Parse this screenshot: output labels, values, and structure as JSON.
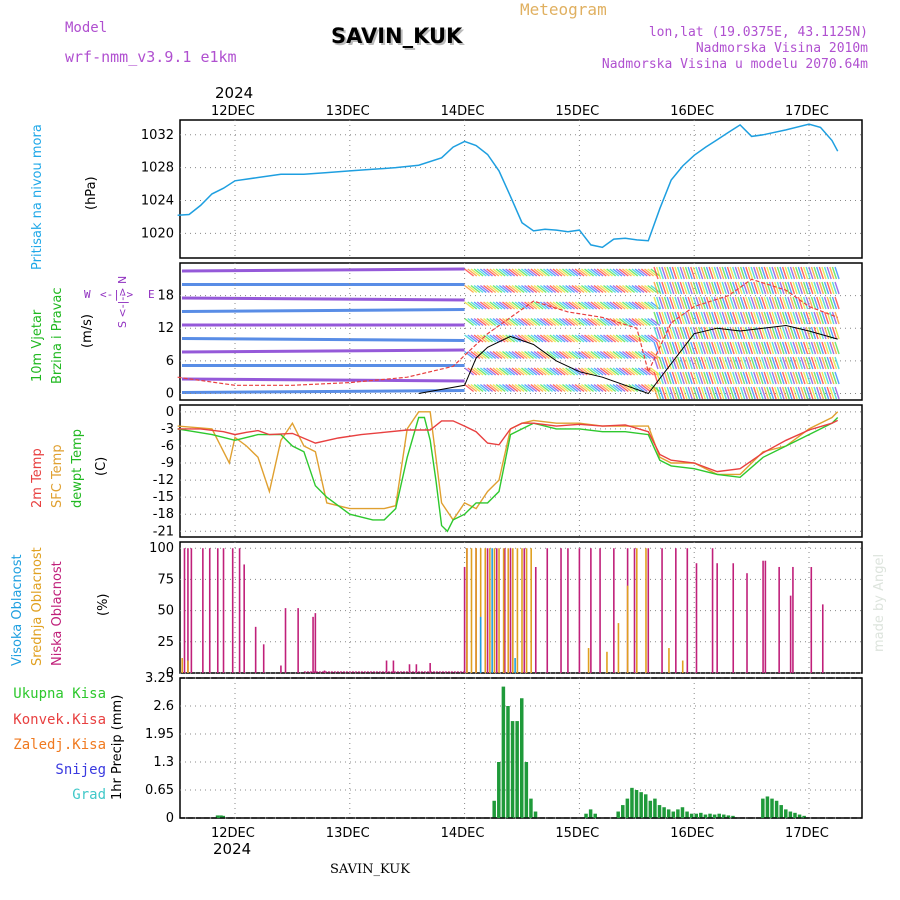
{
  "header": {
    "model_label": "Model",
    "model_name": "wrf-nmm_v3.9.1  e1km",
    "station": "SAVIN_KUK",
    "product": "Meteogram",
    "coords": "lon,lat (19.0375E, 43.1125N)",
    "elevation": "Nadmorska Visina 2010m",
    "model_elevation": "Nadmorska Visina u modelu 2070.64m",
    "year_top": "2024",
    "year_bottom": "2024",
    "footer_station": "SAVIN_KUK",
    "watermark": "made by Angel"
  },
  "colors": {
    "pressure": "#1e9fe0",
    "temp2m": "#e84040",
    "sfc": "#e0a030",
    "dewpt": "#2ec82e",
    "low_cloud": "#c0207a",
    "mid_cloud": "#e0a020",
    "high_cloud": "#20a0e0",
    "total_precip": "#1f9a3a",
    "conv_precip": "#e84040",
    "frz_precip": "#f07a20",
    "snow": "#3a3ae0",
    "graupel": "#40c8c8",
    "wind_label": "#9030c0"
  },
  "panels": {
    "pressure": {
      "label": "Pritisak na nivou mora",
      "unit": "(hPa)"
    },
    "wind": {
      "label1": "10m Vjetar",
      "label2": "Brzina i Pravac",
      "unit": "(m/s)",
      "compass_n": "N",
      "compass_s": "S",
      "compass_w": "W",
      "compass_e": "E"
    },
    "temp": {
      "label1": "2m Temp",
      "label2": "SFC Temp",
      "label3": "dewpt Temp",
      "unit": "(C)"
    },
    "cloud": {
      "label1": "Visoka Oblacnost",
      "label2": "Srednja Oblacnost",
      "label3": "Niska Oblacnost",
      "unit": "(%)"
    },
    "precip": {
      "unit": "1hr Precip (mm)",
      "legend": [
        "Ukupna Kisa",
        "Konvek.Kisa",
        "Zaledj.Kisa",
        "Snijeg",
        "Grad"
      ]
    }
  },
  "chart_data": [
    {
      "type": "line",
      "title": "",
      "ylabel": "(hPa)",
      "x_tick_labels": [
        "12DEC",
        "13DEC",
        "14DEC",
        "15DEC",
        "16DEC",
        "17DEC"
      ],
      "x_days": [
        0,
        1,
        2,
        3,
        4,
        5
      ],
      "x_range_days": [
        -0.5,
        5.25
      ],
      "y_range": [
        1017,
        1033.8
      ],
      "y_ticks": [
        1020,
        1024,
        1028,
        1032
      ],
      "grid": true,
      "series": [
        {
          "name": "Pritisak na nivou mora",
          "x": [
            -0.5,
            -0.4,
            -0.3,
            -0.2,
            -0.1,
            0,
            0.2,
            0.4,
            0.6,
            0.8,
            1,
            1.2,
            1.4,
            1.6,
            1.8,
            1.9,
            2,
            2.1,
            2.2,
            2.3,
            2.4,
            2.5,
            2.6,
            2.7,
            2.8,
            2.9,
            3,
            3.1,
            3.2,
            3.3,
            3.4,
            3.5,
            3.6,
            3.7,
            3.8,
            3.9,
            4,
            4.1,
            4.2,
            4.3,
            4.4,
            4.5,
            4.6,
            4.8,
            5,
            5.1,
            5.2,
            5.25
          ],
          "y": [
            1022.2,
            1022.3,
            1023.4,
            1024.8,
            1025.5,
            1026.4,
            1026.8,
            1027.2,
            1027.2,
            1027.4,
            1027.6,
            1027.8,
            1028,
            1028.3,
            1029.2,
            1030.5,
            1031.2,
            1030.7,
            1029.6,
            1027.6,
            1024.5,
            1021.3,
            1020.3,
            1020.5,
            1020.4,
            1020.2,
            1020.4,
            1018.6,
            1018.3,
            1019.3,
            1019.4,
            1019.2,
            1019.1,
            1023,
            1026.5,
            1028.2,
            1029.5,
            1030.5,
            1031.4,
            1032.3,
            1033.2,
            1031.8,
            1032,
            1032.6,
            1033.3,
            1032.9,
            1031.3,
            1030
          ]
        }
      ]
    },
    {
      "type": "scatter",
      "title": "",
      "ylabel": "(m/s)",
      "y_range": [
        -1.2,
        24
      ],
      "y_ticks": [
        0,
        6,
        12,
        18
      ],
      "grid": true,
      "note": "wind barbs with rainbow colors by speed",
      "series": [
        {
          "name": "Brzina (black line)",
          "x": [
            1.6,
            2.0,
            2.1,
            2.2,
            2.4,
            2.6,
            2.8,
            3.0,
            3.2,
            3.4,
            3.6,
            4.0,
            4.2,
            4.4,
            4.6,
            4.8,
            5.0,
            5.25
          ],
          "y": [
            0,
            1.5,
            6.5,
            8.5,
            10.5,
            9,
            6,
            4,
            3,
            1.5,
            0,
            11,
            12,
            11.5,
            12,
            12.5,
            11.5,
            10
          ]
        },
        {
          "name": "Udari (red dashed)",
          "x": [
            -0.5,
            0,
            0.5,
            1.0,
            1.5,
            1.9,
            2.2,
            2.6,
            2.9,
            3.2,
            3.5,
            3.6,
            3.8,
            4.0,
            4.3,
            4.5,
            4.8,
            5.0,
            5.25
          ],
          "y": [
            3,
            1.5,
            1.5,
            2,
            3,
            5,
            11,
            17,
            15,
            14,
            12,
            4,
            13,
            16,
            18,
            21,
            19,
            16,
            14
          ]
        }
      ]
    },
    {
      "type": "line",
      "title": "",
      "ylabel": "(C)",
      "y_range": [
        -22,
        1.2
      ],
      "y_ticks": [
        0,
        -3,
        -6,
        -9,
        -12,
        -15,
        -18,
        -21
      ],
      "grid": true,
      "series": [
        {
          "name": "2m Temp",
          "x": [
            -0.5,
            -0.3,
            -0.1,
            0.0,
            0.1,
            0.2,
            0.3,
            0.5,
            0.7,
            0.9,
            1.1,
            1.3,
            1.5,
            1.7,
            1.8,
            1.9,
            2.0,
            2.1,
            2.2,
            2.3,
            2.4,
            2.5,
            2.6,
            2.8,
            3.0,
            3.2,
            3.4,
            3.6,
            3.7,
            3.8,
            4.0,
            4.2,
            4.4,
            4.6,
            4.8,
            5.0,
            5.2,
            5.25
          ],
          "y": [
            -3,
            -3,
            -3.5,
            -4,
            -3.6,
            -3.3,
            -4,
            -3.8,
            -5.5,
            -4.6,
            -4,
            -3.6,
            -3.2,
            -3.2,
            -1.6,
            -1.6,
            -2.5,
            -3.5,
            -5.5,
            -5.8,
            -3,
            -2,
            -2,
            -2.5,
            -2.2,
            -2.5,
            -2.3,
            -3.5,
            -7.5,
            -8.5,
            -9,
            -10.5,
            -10,
            -7.2,
            -5,
            -3.2,
            -2,
            -1.5
          ]
        },
        {
          "name": "SFC Temp",
          "x": [
            -0.5,
            -0.2,
            -0.05,
            0.0,
            0.1,
            0.2,
            0.3,
            0.4,
            0.5,
            0.6,
            0.7,
            0.8,
            1.0,
            1.2,
            1.3,
            1.4,
            1.5,
            1.6,
            1.7,
            1.8,
            1.9,
            2.0,
            2.1,
            2.2,
            2.3,
            2.4,
            2.5,
            2.6,
            2.8,
            3.0,
            3.2,
            3.4,
            3.6,
            3.7,
            3.8,
            4.0,
            4.2,
            4.4,
            4.6,
            4.8,
            5.0,
            5.2,
            5.25
          ],
          "y": [
            -2.5,
            -3,
            -9,
            -4.5,
            -6,
            -8,
            -14,
            -5,
            -2,
            -6,
            -7,
            -16,
            -17,
            -17,
            -17,
            -16.5,
            -3,
            0,
            0,
            -16,
            -19,
            -16,
            -17,
            -14,
            -12,
            -3,
            -2,
            -1.5,
            -2,
            -2,
            -2.5,
            -2.5,
            -2.5,
            -8,
            -9,
            -9,
            -11,
            -11,
            -7,
            -6,
            -3,
            -1,
            0
          ]
        },
        {
          "name": "dewpt Temp",
          "x": [
            -0.5,
            -0.2,
            0.0,
            0.2,
            0.4,
            0.5,
            0.6,
            0.7,
            0.8,
            1.0,
            1.2,
            1.3,
            1.4,
            1.5,
            1.6,
            1.65,
            1.7,
            1.75,
            1.8,
            1.85,
            1.9,
            2.0,
            2.1,
            2.2,
            2.3,
            2.4,
            2.5,
            2.6,
            2.8,
            3.0,
            3.2,
            3.4,
            3.6,
            3.7,
            3.8,
            4.0,
            4.2,
            4.4,
            4.6,
            4.8,
            5.0,
            5.2,
            5.25
          ],
          "y": [
            -3,
            -4,
            -5,
            -4,
            -4,
            -6,
            -7,
            -13,
            -15,
            -18,
            -19,
            -19,
            -17,
            -8,
            -1,
            -1,
            -5,
            -12,
            -20,
            -21,
            -19,
            -18,
            -16,
            -16,
            -14,
            -4,
            -3,
            -2,
            -3,
            -3,
            -3.5,
            -3.5,
            -4,
            -8.5,
            -9.5,
            -10,
            -11,
            -11.5,
            -8,
            -6,
            -4,
            -2,
            -1
          ]
        }
      ]
    },
    {
      "type": "bar",
      "title": "",
      "ylabel": "(%)",
      "y_range": [
        0,
        105
      ],
      "y_ticks": [
        0,
        25,
        50,
        75,
        100
      ],
      "grid": true,
      "series": [
        {
          "name": "Niska Oblacnost",
          "x": [
            -0.44,
            -0.41,
            -0.38,
            -0.28,
            -0.22,
            -0.15,
            -0.1,
            -0.02,
            0.04,
            0.08,
            0.18,
            0.25,
            0.4,
            0.44,
            0.55,
            0.68,
            0.7,
            0.78,
            1.32,
            1.38,
            1.52,
            1.58,
            1.7,
            2.0,
            2.02,
            2.1,
            2.2,
            2.28,
            2.35,
            2.4,
            2.52,
            2.62,
            2.72,
            2.84,
            2.9,
            3.0,
            3.1,
            3.18,
            3.3,
            3.42,
            3.48,
            3.6,
            3.72,
            3.84,
            3.94,
            4.02,
            4.16,
            4.2,
            4.34,
            4.46,
            4.6,
            4.62,
            4.74,
            4.84,
            4.86,
            5.02,
            5.12
          ],
          "y": [
            100,
            100,
            100,
            100,
            100,
            100,
            100,
            100,
            100,
            87,
            37,
            23,
            6,
            52,
            52,
            45,
            48,
            2,
            10,
            10,
            7,
            7,
            8,
            85,
            100,
            100,
            100,
            100,
            100,
            100,
            100,
            85,
            100,
            100,
            100,
            100,
            100,
            100,
            100,
            100,
            100,
            100,
            100,
            100,
            100,
            88,
            100,
            88,
            88,
            80,
            90,
            90,
            85,
            62,
            85,
            85,
            55
          ]
        },
        {
          "name": "Srednja Oblacnost",
          "x": [
            -0.46,
            -0.41,
            2.02,
            2.06,
            2.1,
            2.14,
            2.18,
            2.22,
            2.26,
            2.3,
            2.34,
            2.38,
            2.42,
            2.46,
            2.5,
            2.54,
            2.58,
            3.08,
            3.24,
            3.34,
            3.42,
            3.5,
            3.58,
            3.78,
            3.9
          ],
          "y": [
            12,
            10,
            100,
            100,
            100,
            100,
            100,
            100,
            100,
            100,
            100,
            100,
            100,
            100,
            100,
            100,
            100,
            20,
            17,
            40,
            70,
            100,
            100,
            20,
            10
          ]
        },
        {
          "name": "Visoka Oblacnost",
          "x": [
            2.14,
            2.24,
            2.44
          ],
          "y": [
            45,
            100,
            12
          ]
        }
      ]
    },
    {
      "type": "bar",
      "title": "",
      "ylabel": "1hr Precip (mm)",
      "y_range": [
        0,
        3.25
      ],
      "y_ticks": [
        0,
        0.65,
        1.3,
        1.95,
        2.6,
        3.25
      ],
      "grid": true,
      "series": [
        {
          "name": "Ukupna Kisa",
          "x": [
            -0.15,
            -0.12,
            -0.1,
            2.26,
            2.3,
            2.34,
            2.38,
            2.42,
            2.46,
            2.5,
            2.54,
            2.58,
            2.62,
            3.06,
            3.1,
            3.14,
            3.34,
            3.38,
            3.42,
            3.46,
            3.5,
            3.54,
            3.58,
            3.62,
            3.66,
            3.7,
            3.74,
            3.78,
            3.82,
            3.86,
            3.9,
            3.94,
            3.98,
            4.02,
            4.06,
            4.1,
            4.14,
            4.18,
            4.22,
            4.26,
            4.3,
            4.34,
            4.6,
            4.64,
            4.68,
            4.72,
            4.76,
            4.8,
            4.84,
            4.88,
            4.92,
            4.96
          ],
          "y": [
            0.06,
            0.06,
            0.05,
            0.4,
            1.3,
            3.05,
            2.6,
            2.25,
            2.25,
            2.78,
            1.3,
            0.45,
            0.15,
            0.1,
            0.2,
            0.1,
            0.15,
            0.3,
            0.45,
            0.7,
            0.65,
            0.6,
            0.55,
            0.4,
            0.45,
            0.3,
            0.25,
            0.2,
            0.15,
            0.2,
            0.25,
            0.15,
            0.1,
            0.1,
            0.12,
            0.08,
            0.1,
            0.08,
            0.1,
            0.08,
            0.06,
            0.05,
            0.45,
            0.5,
            0.45,
            0.4,
            0.3,
            0.2,
            0.15,
            0.12,
            0.08,
            0.05
          ]
        }
      ]
    }
  ]
}
